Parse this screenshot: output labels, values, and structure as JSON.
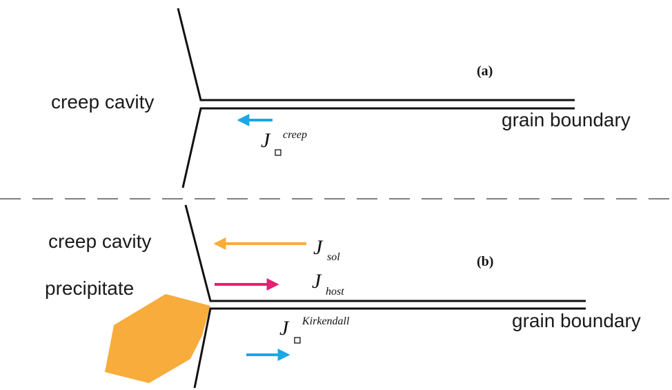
{
  "panel_a": {
    "tag": "(a)",
    "cavity_label": "creep cavity",
    "boundary_label": "grain boundary",
    "flux": {
      "symbol": "J",
      "superscript": "creep"
    }
  },
  "panel_b": {
    "tag": "(b)",
    "cavity_label": "creep cavity",
    "precipitate_label": "precipitate",
    "boundary_label": "grain boundary",
    "flux_sol": {
      "symbol": "J",
      "subscript": "sol"
    },
    "flux_host": {
      "symbol": "J",
      "subscript": "host"
    },
    "flux_kirkendall": {
      "symbol": "J",
      "superscript": "Kirkendall"
    }
  },
  "colors": {
    "creep_arrow": "#1ba7e6",
    "sol_arrow": "#f7ac3c",
    "host_arrow": "#e51f72",
    "kirkendall_arrow": "#1ba7e6",
    "precipitate_fill": "#f7ac3c",
    "line": "#111111"
  }
}
